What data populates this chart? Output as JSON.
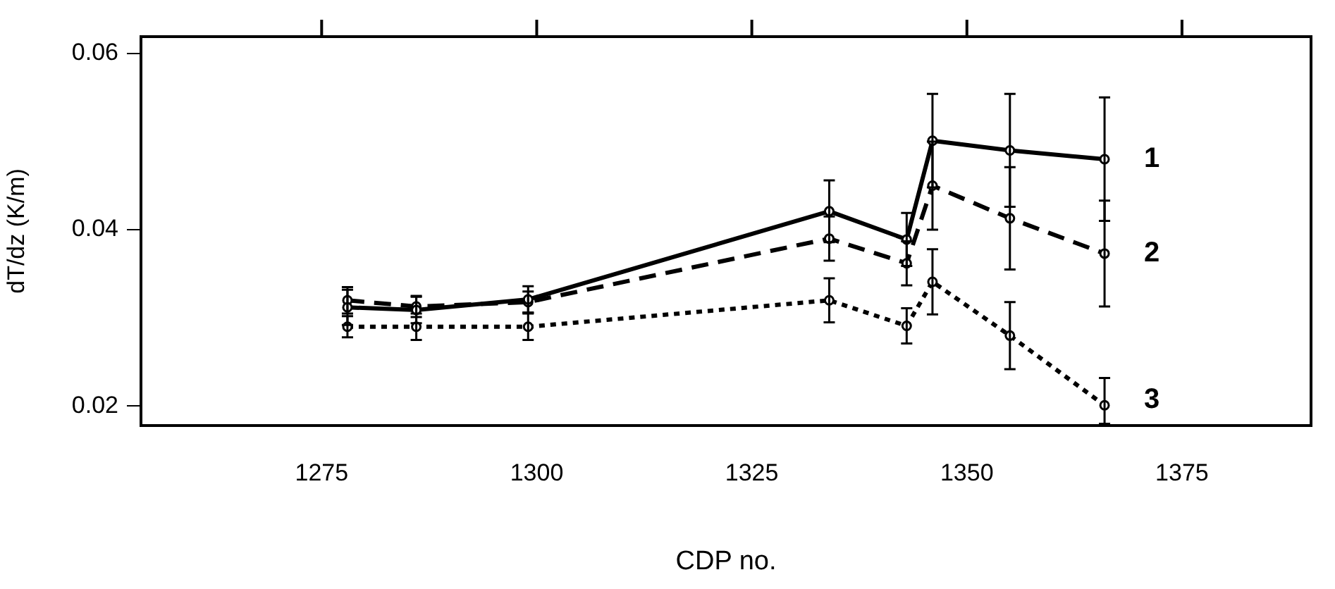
{
  "chart_data": {
    "type": "line",
    "xlabel": "CDP no.",
    "ylabel": "dT/dz (K/m)",
    "xlim": [
      1254,
      1390
    ],
    "xticks": [
      1275,
      1300,
      1325,
      1350,
      1375
    ],
    "ylim": [
      0.0178,
      0.0619
    ],
    "yticks": [
      0.02,
      0.04,
      0.06
    ],
    "x": [
      1278,
      1286,
      1299,
      1334,
      1343,
      1346,
      1355,
      1366
    ],
    "marker": "circle",
    "grid": false,
    "legend": false,
    "series": [
      {
        "name": "1",
        "color": "#000000",
        "line_style": "solid",
        "values": [
          0.0312,
          0.0309,
          0.0321,
          0.0421,
          0.0389,
          0.0501,
          0.049,
          0.048
        ],
        "errors": [
          0.002,
          0.0015,
          0.0015,
          0.0035,
          0.003,
          0.0053,
          0.0064,
          0.007
        ]
      },
      {
        "name": "2",
        "color": "#000000",
        "line_style": "dashed",
        "values": [
          0.032,
          0.0313,
          0.0318,
          0.039,
          0.0362,
          0.045,
          0.0413,
          0.0373
        ],
        "errors": [
          0.0015,
          0.0012,
          0.0012,
          0.0025,
          0.0025,
          0.005,
          0.0058,
          0.006
        ]
      },
      {
        "name": "3",
        "color": "#000000",
        "line_style": "dotted",
        "values": [
          0.029,
          0.029,
          0.029,
          0.032,
          0.0291,
          0.0341,
          0.028,
          0.0201
        ],
        "errors": [
          0.0012,
          0.0015,
          0.0015,
          0.0025,
          0.002,
          0.0037,
          0.0038,
          [
            0.018,
            0.0232
          ]
        ]
      }
    ]
  }
}
